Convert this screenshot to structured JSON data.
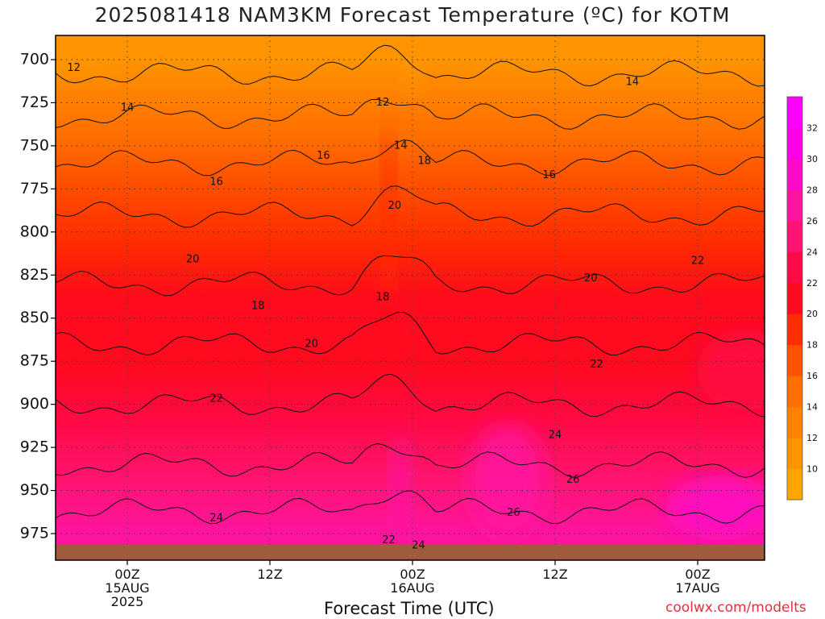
{
  "title": "2025081418 NAM3KM Forecast Temperature (ºC) for KOTM",
  "xlabel": "Forecast Time (UTC)",
  "credit": "coolwx.com/modelts",
  "chart_data": {
    "type": "heatmap",
    "title": "2025081418 NAM3KM Forecast Temperature (ºC) for KOTM",
    "xlabel": "Forecast Time (UTC)",
    "ylabel": "",
    "y_axis": {
      "ticks": [
        700,
        725,
        750,
        775,
        800,
        825,
        850,
        875,
        900,
        925,
        950,
        975
      ],
      "inverted": true
    },
    "x_axis": {
      "ticks": [
        {
          "hour": 6,
          "lines": [
            "00Z",
            "15AUG",
            "2025"
          ]
        },
        {
          "hour": 18,
          "lines": [
            "12Z"
          ]
        },
        {
          "hour": 30,
          "lines": [
            "00Z",
            "16AUG"
          ]
        },
        {
          "hour": 42,
          "lines": [
            "12Z"
          ]
        },
        {
          "hour": 54,
          "lines": [
            "00Z",
            "17AUG"
          ]
        }
      ]
    },
    "grid": true,
    "colorbar": {
      "labels": [
        10,
        12,
        14,
        16,
        18,
        20,
        22,
        24,
        26,
        28,
        30,
        32
      ],
      "colors": [
        "#ffa500",
        "#ff9400",
        "#ff8200",
        "#ff6e00",
        "#ff5200",
        "#ff2d00",
        "#ff0a1e",
        "#ff0a46",
        "#ff1473",
        "#ff14a0",
        "#ff0ac8",
        "#ff00e6",
        "#ff00ff"
      ]
    },
    "contour_labels": [
      {
        "text": "12",
        "hour": 1.5,
        "p": 705
      },
      {
        "text": "12",
        "hour": 27.5,
        "p": 725
      },
      {
        "text": "14",
        "hour": 6.0,
        "p": 728
      },
      {
        "text": "14",
        "hour": 48.5,
        "p": 713
      },
      {
        "text": "14",
        "hour": 29.0,
        "p": 750
      },
      {
        "text": "16",
        "hour": 13.5,
        "p": 771
      },
      {
        "text": "16",
        "hour": 22.5,
        "p": 756
      },
      {
        "text": "16",
        "hour": 41.5,
        "p": 767
      },
      {
        "text": "18",
        "hour": 31.0,
        "p": 759
      },
      {
        "text": "18",
        "hour": 17.0,
        "p": 843
      },
      {
        "text": "18",
        "hour": 27.5,
        "p": 838
      },
      {
        "text": "20",
        "hour": 28.5,
        "p": 785
      },
      {
        "text": "20",
        "hour": 11.5,
        "p": 816
      },
      {
        "text": "20",
        "hour": 21.5,
        "p": 865
      },
      {
        "text": "20",
        "hour": 45.0,
        "p": 827
      },
      {
        "text": "22",
        "hour": 54.0,
        "p": 817
      },
      {
        "text": "22",
        "hour": 45.5,
        "p": 877
      },
      {
        "text": "22",
        "hour": 13.5,
        "p": 897
      },
      {
        "text": "24",
        "hour": 13.5,
        "p": 966
      },
      {
        "text": "24",
        "hour": 42.0,
        "p": 918
      },
      {
        "text": "24",
        "hour": 30.5,
        "p": 982
      },
      {
        "text": "22",
        "hour": 28.0,
        "p": 979
      },
      {
        "text": "26",
        "hour": 43.5,
        "p": 944
      },
      {
        "text": "26",
        "hour": 38.5,
        "p": 963
      }
    ]
  }
}
